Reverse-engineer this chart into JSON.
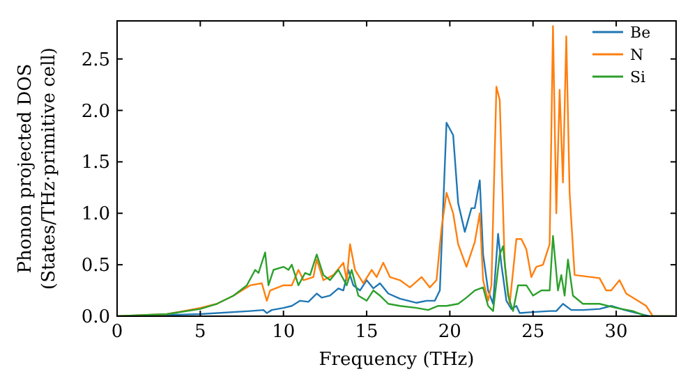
{
  "chart_data": {
    "type": "line",
    "xlabel": "Frequency (THz)",
    "ylabel": "Phonon projected DOS\n(States/THz·primitive cell)",
    "xlim": [
      0,
      33.6
    ],
    "ylim": [
      0,
      2.87
    ],
    "xticks": [
      0,
      5,
      10,
      15,
      20,
      25,
      30
    ],
    "yticks": [
      {
        "value": 0,
        "label": "0.0"
      },
      {
        "value": 0.5,
        "label": "0.5"
      },
      {
        "value": 1,
        "label": "1.0"
      },
      {
        "value": 1.5,
        "label": "1.5"
      },
      {
        "value": 2,
        "label": "2.0"
      },
      {
        "value": 2.5,
        "label": "2.5"
      }
    ],
    "legend": "top right",
    "grid": false,
    "line_style": "solid",
    "marker": "none",
    "series": [
      {
        "name": "Be",
        "color": "#1f77b4",
        "x": [
          0,
          5,
          8,
          8.8,
          9,
          9.3,
          10,
          10.5,
          11,
          11.5,
          12,
          12.3,
          12.8,
          13.3,
          13.6,
          13.9,
          14.2,
          14.6,
          15,
          15.4,
          15.8,
          16.3,
          17,
          18,
          18.6,
          19.1,
          19.4,
          19.8,
          20.2,
          20.5,
          20.9,
          21.3,
          21.5,
          21.8,
          22,
          22.3,
          22.6,
          22.9,
          23.1,
          23.4,
          23.7,
          24,
          24.2,
          25,
          26,
          26.4,
          26.8,
          27.3,
          28,
          29,
          29.7,
          30.5,
          31.5,
          32,
          33.5
        ],
        "values": [
          0,
          0.02,
          0.05,
          0.06,
          0.03,
          0.06,
          0.08,
          0.1,
          0.15,
          0.14,
          0.22,
          0.18,
          0.2,
          0.27,
          0.25,
          0.45,
          0.3,
          0.25,
          0.35,
          0.27,
          0.32,
          0.22,
          0.17,
          0.13,
          0.15,
          0.15,
          0.25,
          1.88,
          1.76,
          1.1,
          0.82,
          1.05,
          1.05,
          1.32,
          0.6,
          0.25,
          0.12,
          0.8,
          0.5,
          0.15,
          0.07,
          0.1,
          0.03,
          0.04,
          0.05,
          0.05,
          0.12,
          0.06,
          0.06,
          0.07,
          0.1,
          0.06,
          0.02,
          0,
          0
        ]
      },
      {
        "name": "N",
        "color": "#ff7f0e",
        "x": [
          0,
          3,
          5,
          6,
          7,
          8,
          8.7,
          9,
          9.2,
          10,
          10.5,
          10.9,
          11.2,
          11.8,
          12,
          12.4,
          13,
          13.6,
          13.8,
          14,
          14.3,
          14.8,
          15.3,
          15.6,
          16,
          16.4,
          17,
          17.6,
          18.3,
          18.8,
          19.2,
          19.5,
          19.8,
          20.2,
          20.5,
          21,
          21.5,
          21.8,
          22,
          22.3,
          22.5,
          22.8,
          23,
          23.3,
          23.6,
          24,
          24.3,
          24.6,
          24.9,
          25.2,
          25.6,
          26,
          26.2,
          26.4,
          26.6,
          26.8,
          27,
          27.2,
          27.5,
          28.5,
          29,
          29.4,
          29.7,
          30.2,
          30.6,
          31.3,
          31.8,
          32.2,
          33.5
        ],
        "values": [
          0,
          0.02,
          0.08,
          0.12,
          0.2,
          0.3,
          0.32,
          0.15,
          0.25,
          0.3,
          0.3,
          0.45,
          0.35,
          0.38,
          0.55,
          0.35,
          0.4,
          0.52,
          0.35,
          0.7,
          0.45,
          0.32,
          0.45,
          0.38,
          0.52,
          0.38,
          0.35,
          0.28,
          0.38,
          0.28,
          0.35,
          0.85,
          1.2,
          1,
          0.7,
          0.48,
          0.72,
          1,
          0.35,
          0.15,
          0.3,
          2.23,
          2.1,
          0.5,
          0.12,
          0.75,
          0.75,
          0.65,
          0.38,
          0.48,
          0.5,
          0.7,
          2.82,
          1,
          2.2,
          1.3,
          2.72,
          1.2,
          0.4,
          0.38,
          0.37,
          0.25,
          0.25,
          0.35,
          0.22,
          0.15,
          0.1,
          0,
          0
        ]
      },
      {
        "name": "Si",
        "color": "#2ca02c",
        "x": [
          0,
          3,
          5,
          6,
          7,
          7.8,
          8.3,
          8.5,
          8.9,
          9.1,
          9.4,
          10,
          10.3,
          10.5,
          10.9,
          11.3,
          11.6,
          12,
          12.4,
          12.8,
          13.3,
          13.8,
          14.1,
          14.5,
          15,
          15.4,
          15.8,
          16.3,
          17,
          18,
          18.7,
          19.3,
          19.8,
          20.5,
          21,
          21.5,
          22,
          22.3,
          22.6,
          23,
          23.2,
          23.5,
          23.8,
          24.1,
          24.6,
          25,
          25.5,
          26,
          26.2,
          26.5,
          26.7,
          26.9,
          27.1,
          27.4,
          28,
          29,
          30,
          31,
          31.8,
          33.5
        ],
        "values": [
          0,
          0.02,
          0.07,
          0.12,
          0.2,
          0.3,
          0.45,
          0.42,
          0.62,
          0.3,
          0.45,
          0.48,
          0.45,
          0.5,
          0.3,
          0.42,
          0.4,
          0.6,
          0.4,
          0.35,
          0.45,
          0.3,
          0.45,
          0.2,
          0.15,
          0.25,
          0.2,
          0.12,
          0.1,
          0.08,
          0.06,
          0.1,
          0.1,
          0.12,
          0.18,
          0.25,
          0.28,
          0.1,
          0.05,
          0.6,
          0.68,
          0.2,
          0.05,
          0.3,
          0.3,
          0.2,
          0.25,
          0.25,
          0.78,
          0.25,
          0.4,
          0.2,
          0.55,
          0.2,
          0.12,
          0.12,
          0.08,
          0.05,
          0,
          0
        ]
      }
    ]
  }
}
